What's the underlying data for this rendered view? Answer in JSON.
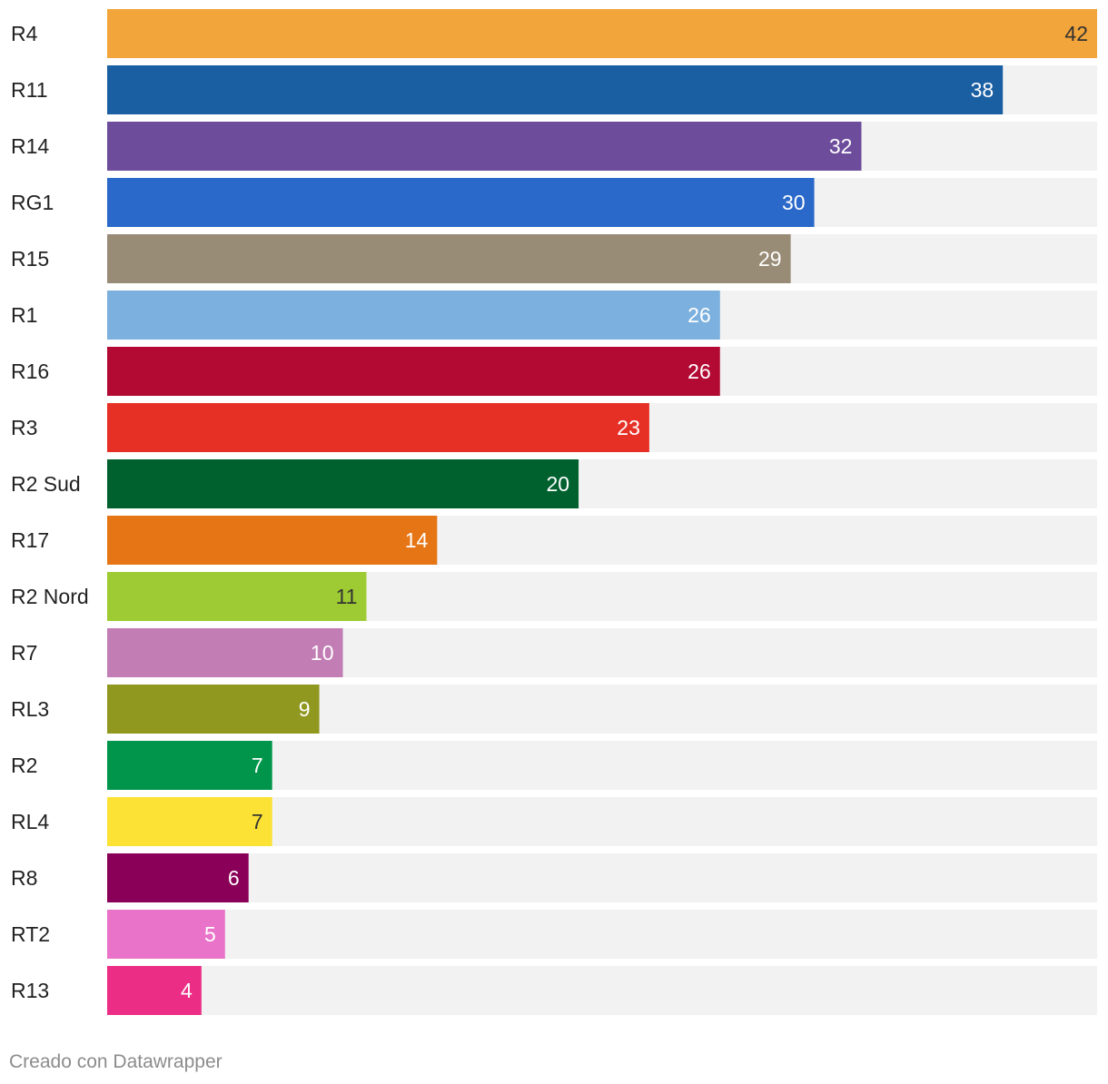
{
  "chart_data": {
    "type": "bar",
    "orientation": "horizontal",
    "title": "",
    "xlabel": "",
    "ylabel": "",
    "xlim": [
      0,
      42
    ],
    "grid": false,
    "legend": "none",
    "categories": [
      "R4",
      "R11",
      "R14",
      "RG1",
      "R15",
      "R1",
      "R16",
      "R3",
      "R2 Sud",
      "R17",
      "R2 Nord",
      "R7",
      "RL3",
      "R2",
      "RL4",
      "R8",
      "RT2",
      "R13"
    ],
    "values": [
      42,
      38,
      32,
      30,
      29,
      26,
      26,
      23,
      20,
      14,
      11,
      10,
      9,
      7,
      7,
      6,
      5,
      4
    ],
    "colors": [
      "#f2a53a",
      "#1b5fa3",
      "#6d4c9c",
      "#2a69c9",
      "#998c76",
      "#7cb0de",
      "#b20a33",
      "#e63026",
      "#00612e",
      "#e67515",
      "#9ecb33",
      "#c27db4",
      "#909820",
      "#00954a",
      "#fbe234",
      "#8a0058",
      "#e973c8",
      "#eb2d86"
    ],
    "label_colors": [
      "#333333",
      "#ffffff",
      "#ffffff",
      "#ffffff",
      "#ffffff",
      "#ffffff",
      "#ffffff",
      "#ffffff",
      "#ffffff",
      "#ffffff",
      "#333333",
      "#ffffff",
      "#ffffff",
      "#ffffff",
      "#333333",
      "#ffffff",
      "#ffffff",
      "#ffffff"
    ],
    "track_color": "#f2f2f2"
  },
  "footer": {
    "credit": "Creado con Datawrapper"
  }
}
